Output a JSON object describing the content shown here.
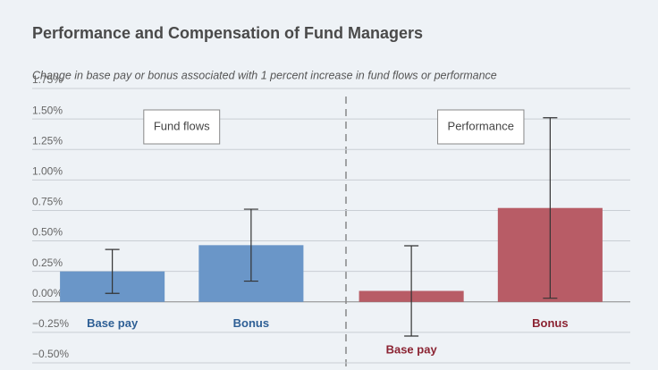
{
  "chart_data": {
    "type": "bar",
    "title": "Performance and Compensation of Fund Managers",
    "subtitle": "Change in base pay or bonus associated with 1 percent increase in fund flows or performance",
    "groups": [
      {
        "name": "Fund flows",
        "color": "#6a96c8",
        "label_color": "#2e5f95",
        "categories": [
          "Base pay",
          "Bonus"
        ],
        "values": [
          0.25,
          0.465
        ],
        "errors": [
          0.18,
          0.295
        ]
      },
      {
        "name": "Performance",
        "color": "#b85c66",
        "label_color": "#8b2332",
        "categories": [
          "Base pay",
          "Bonus"
        ],
        "values": [
          0.09,
          0.77
        ],
        "errors": [
          0.37,
          0.74
        ]
      }
    ],
    "ylim": [
      -0.5,
      1.75
    ],
    "yticks": [
      {
        "value": -0.5,
        "label": "−0.50%"
      },
      {
        "value": -0.25,
        "label": "−0.25%"
      },
      {
        "value": 0,
        "label": "0.00%"
      },
      {
        "value": 0.25,
        "label": "0.25%"
      },
      {
        "value": 0.5,
        "label": "0.50%"
      },
      {
        "value": 0.75,
        "label": "0.75%"
      },
      {
        "value": 1,
        "label": "1.00%"
      },
      {
        "value": 1.25,
        "label": "1.25%"
      },
      {
        "value": 1.5,
        "label": "1.50%"
      },
      {
        "value": 1.75,
        "label": "1.75%"
      }
    ],
    "grid": true
  }
}
